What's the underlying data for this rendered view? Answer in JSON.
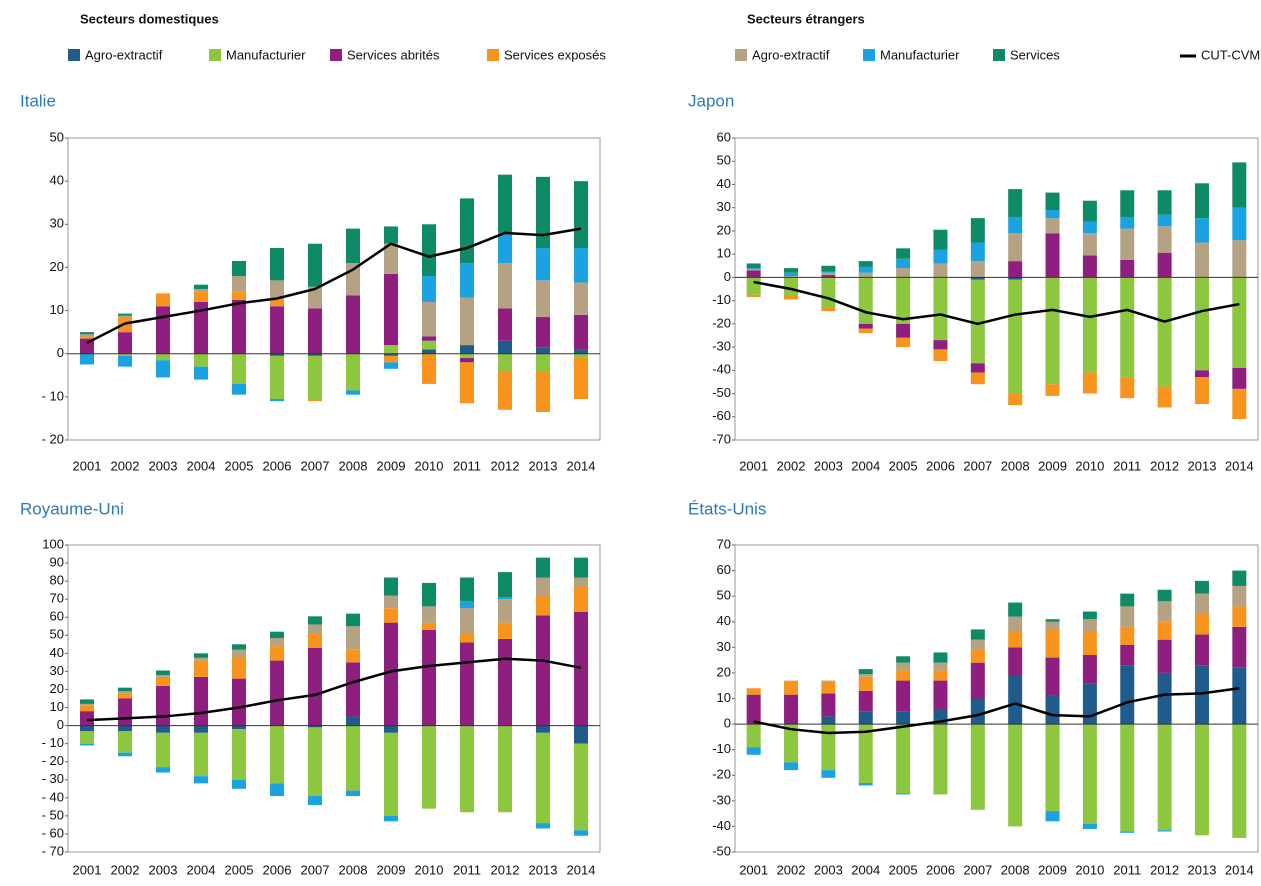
{
  "legend": [
    {
      "title": "Secteurs domestiques",
      "series": [
        {
          "name": "Agro-extractif",
          "color": "#1f5c8b"
        },
        {
          "name": "Manufacturier",
          "color": "#8dc63f"
        },
        {
          "name": "Services abrités",
          "color": "#8e1f7f"
        },
        {
          "name": "Services exposés",
          "color": "#f7941d"
        }
      ]
    },
    {
      "title": "Secteurs étrangers",
      "series": [
        {
          "name": "Agro-extractif",
          "color": "#b5a283"
        },
        {
          "name": "Manufacturier",
          "color": "#1aa3e0"
        },
        {
          "name": "Services",
          "color": "#0e8a66"
        }
      ]
    }
  ],
  "line_legend": {
    "name": "CUT-CVM",
    "color": "#000000"
  },
  "chart_data": [
    {
      "type": "bar",
      "title": "Italie",
      "categories": [
        "2001",
        "2002",
        "2003",
        "2004",
        "2005",
        "2006",
        "2007",
        "2008",
        "2009",
        "2010",
        "2011",
        "2012",
        "2013",
        "2014"
      ],
      "ylim": [
        -20,
        50
      ],
      "yticks": [
        {
          "value": -20,
          "label": "- 20"
        },
        {
          "value": -10,
          "label": "- 10"
        },
        0,
        10,
        20,
        30,
        40,
        50
      ],
      "series": [
        {
          "values": [
            0,
            0,
            0,
            0,
            0,
            -0.5,
            -0.5,
            0,
            -0.5,
            1,
            2,
            3,
            1.5,
            1
          ]
        },
        {
          "values": [
            0,
            -0.5,
            -1.5,
            -3,
            -7,
            -10,
            -10,
            -8.5,
            2,
            2,
            -1,
            -4,
            -4,
            -1
          ]
        },
        {
          "values": [
            3.5,
            5,
            11,
            12,
            12.5,
            11,
            10.5,
            13.5,
            16.5,
            1,
            -1,
            7.5,
            7,
            8
          ]
        },
        {
          "values": [
            0.5,
            3.5,
            3,
            2.5,
            2,
            1.5,
            -0.5,
            0,
            -1.5,
            -7,
            -9.5,
            -9,
            -9.5,
            -9.5
          ]
        },
        {
          "values": [
            0.5,
            0.3,
            0,
            0.5,
            3.5,
            4.5,
            5,
            7.5,
            7,
            8,
            11,
            10.5,
            8.5,
            7.5
          ]
        },
        {
          "values": [
            -2.5,
            -2.5,
            -4,
            -3,
            -2.5,
            -0.5,
            0,
            -1,
            -1.5,
            6,
            8,
            7,
            7.5,
            8
          ]
        },
        {
          "values": [
            0.5,
            0.5,
            0,
            1,
            3.5,
            7.5,
            10,
            8,
            4,
            12,
            15,
            13.5,
            16.5,
            15.5
          ]
        }
      ],
      "line": {
        "values": [
          2.5,
          7,
          8.5,
          10,
          11.7,
          12.8,
          15,
          19.5,
          25.5,
          22.5,
          24.5,
          28,
          27.5,
          29
        ]
      }
    },
    {
      "type": "bar",
      "title": "Japon",
      "categories": [
        "2001",
        "2002",
        "2003",
        "2004",
        "2005",
        "2006",
        "2007",
        "2008",
        "2009",
        "2010",
        "2011",
        "2012",
        "2013",
        "2014"
      ],
      "ylim": [
        -70,
        60
      ],
      "yticks": [
        -70,
        -60,
        -50,
        -40,
        -30,
        -20,
        -10,
        0,
        10,
        20,
        30,
        40,
        50,
        60
      ],
      "series": [
        {
          "values": [
            0,
            0,
            0,
            0,
            0,
            0,
            -1,
            -1,
            0,
            0,
            0,
            0,
            0,
            0
          ]
        },
        {
          "values": [
            -7.5,
            -8,
            -13,
            -20,
            -20,
            -27,
            -36,
            -49,
            -46,
            -41,
            -43,
            -47,
            -40,
            -39
          ]
        },
        {
          "values": [
            3,
            0,
            1,
            -2,
            -6,
            -4,
            -4,
            7,
            19,
            9.5,
            7.5,
            10.5,
            -3,
            -9
          ]
        },
        {
          "values": [
            -1,
            -1.5,
            -1.5,
            -2,
            -4,
            -5,
            -5,
            -5,
            -5,
            -9,
            -9,
            -9,
            -11.5,
            -13
          ]
        },
        {
          "values": [
            0.5,
            0.5,
            1,
            2,
            4,
            6,
            7,
            12,
            6.5,
            9.5,
            13.5,
            11.5,
            15,
            16
          ]
        },
        {
          "values": [
            0.5,
            1.5,
            0.5,
            2.5,
            4,
            6,
            8,
            7,
            3.5,
            5,
            5,
            5,
            10.5,
            14
          ]
        },
        {
          "values": [
            2,
            2,
            2.5,
            2.5,
            4.5,
            8.5,
            10.5,
            12,
            7.5,
            9,
            11.5,
            10.5,
            15,
            19.5
          ]
        }
      ],
      "line": {
        "values": [
          -2,
          -5,
          -9,
          -15,
          -18,
          -16,
          -20,
          -16,
          -14,
          -17,
          -14,
          -19,
          -14.5,
          -11.5
        ]
      }
    },
    {
      "type": "bar",
      "title": "Royaume-Uni",
      "categories": [
        "2001",
        "2002",
        "2003",
        "2004",
        "2005",
        "2006",
        "2007",
        "2008",
        "2009",
        "2010",
        "2011",
        "2012",
        "2013",
        "2014"
      ],
      "ylim": [
        -70,
        100
      ],
      "yticks": [
        {
          "value": -70,
          "label": "- 70"
        },
        {
          "value": -60,
          "label": "- 60"
        },
        {
          "value": -50,
          "label": "- 50"
        },
        {
          "value": -40,
          "label": "- 40"
        },
        {
          "value": -30,
          "label": "- 30"
        },
        {
          "value": -20,
          "label": "- 20"
        },
        {
          "value": -10,
          "label": "- 10"
        },
        0,
        10,
        20,
        30,
        40,
        50,
        60,
        70,
        80,
        90,
        100
      ],
      "series": [
        {
          "values": [
            -3,
            -3,
            -4,
            -4,
            -2,
            0,
            -1,
            5,
            -4,
            0,
            0,
            0,
            -4,
            -10
          ]
        },
        {
          "values": [
            -7,
            -12,
            -19,
            -24,
            -28,
            -32,
            -38,
            -36,
            -46,
            -46,
            -48,
            -48,
            -50,
            -48
          ]
        },
        {
          "values": [
            8,
            15,
            22,
            27,
            26,
            36,
            43,
            30,
            57,
            53,
            46,
            48,
            61,
            63
          ]
        },
        {
          "values": [
            3,
            3,
            5,
            9,
            12,
            8,
            8,
            7,
            8,
            4,
            5,
            9,
            11,
            14
          ]
        },
        {
          "values": [
            1,
            1,
            1,
            1.5,
            4,
            4.5,
            5,
            13,
            7,
            9,
            14,
            13,
            10,
            5
          ]
        },
        {
          "values": [
            -1,
            -2,
            -3,
            -4,
            -5,
            -7,
            -5,
            -3,
            -3,
            0,
            4,
            1,
            -3,
            -3
          ]
        },
        {
          "values": [
            2.5,
            2,
            2.5,
            2.5,
            3,
            3.5,
            4.5,
            7,
            10,
            13,
            13,
            14,
            11,
            11
          ]
        }
      ],
      "line": {
        "values": [
          3,
          4,
          5,
          7,
          10,
          14,
          17,
          24,
          30,
          33,
          35,
          37,
          36,
          32
        ]
      }
    },
    {
      "type": "bar",
      "title": "États-Unis",
      "categories": [
        "2001",
        "2002",
        "2003",
        "2004",
        "2005",
        "2006",
        "2007",
        "2008",
        "2009",
        "2010",
        "2011",
        "2012",
        "2013",
        "2014"
      ],
      "ylim": [
        -50,
        70
      ],
      "yticks": [
        -50,
        -40,
        -30,
        -20,
        -10,
        0,
        10,
        20,
        30,
        40,
        50,
        60,
        70
      ],
      "series": [
        {
          "values": [
            0,
            0,
            3,
            5,
            5,
            5.5,
            10,
            19,
            11,
            16,
            23,
            20,
            23,
            22
          ]
        },
        {
          "values": [
            -9,
            -15,
            -18,
            -23,
            -27,
            -27.5,
            -33.5,
            -40,
            -34,
            -39,
            -42,
            -41.5,
            -43.5,
            -44.5
          ]
        },
        {
          "values": [
            11.5,
            11.5,
            9,
            8,
            12,
            11.5,
            14,
            11,
            15,
            11,
            8,
            13,
            12,
            16
          ]
        },
        {
          "values": [
            2.5,
            5,
            4.5,
            5.5,
            4,
            4,
            5,
            6,
            11,
            9,
            7,
            7,
            8,
            8
          ]
        },
        {
          "values": [
            0,
            0.5,
            0.5,
            1,
            3,
            3,
            4,
            6,
            3,
            5,
            8,
            8,
            8,
            8
          ]
        },
        {
          "values": [
            -3,
            -3,
            -3,
            -1,
            -0.5,
            0,
            0,
            0,
            -4,
            -2,
            -0.5,
            -0.5,
            0,
            0
          ]
        },
        {
          "values": [
            0,
            0,
            0,
            2,
            2.5,
            4,
            4,
            5.5,
            1,
            3,
            5,
            4.5,
            5,
            6
          ]
        }
      ],
      "line": {
        "values": [
          1,
          -2,
          -3.5,
          -3,
          -1,
          1,
          3.5,
          8,
          3.5,
          3,
          8.5,
          11.5,
          12,
          14
        ]
      }
    }
  ]
}
